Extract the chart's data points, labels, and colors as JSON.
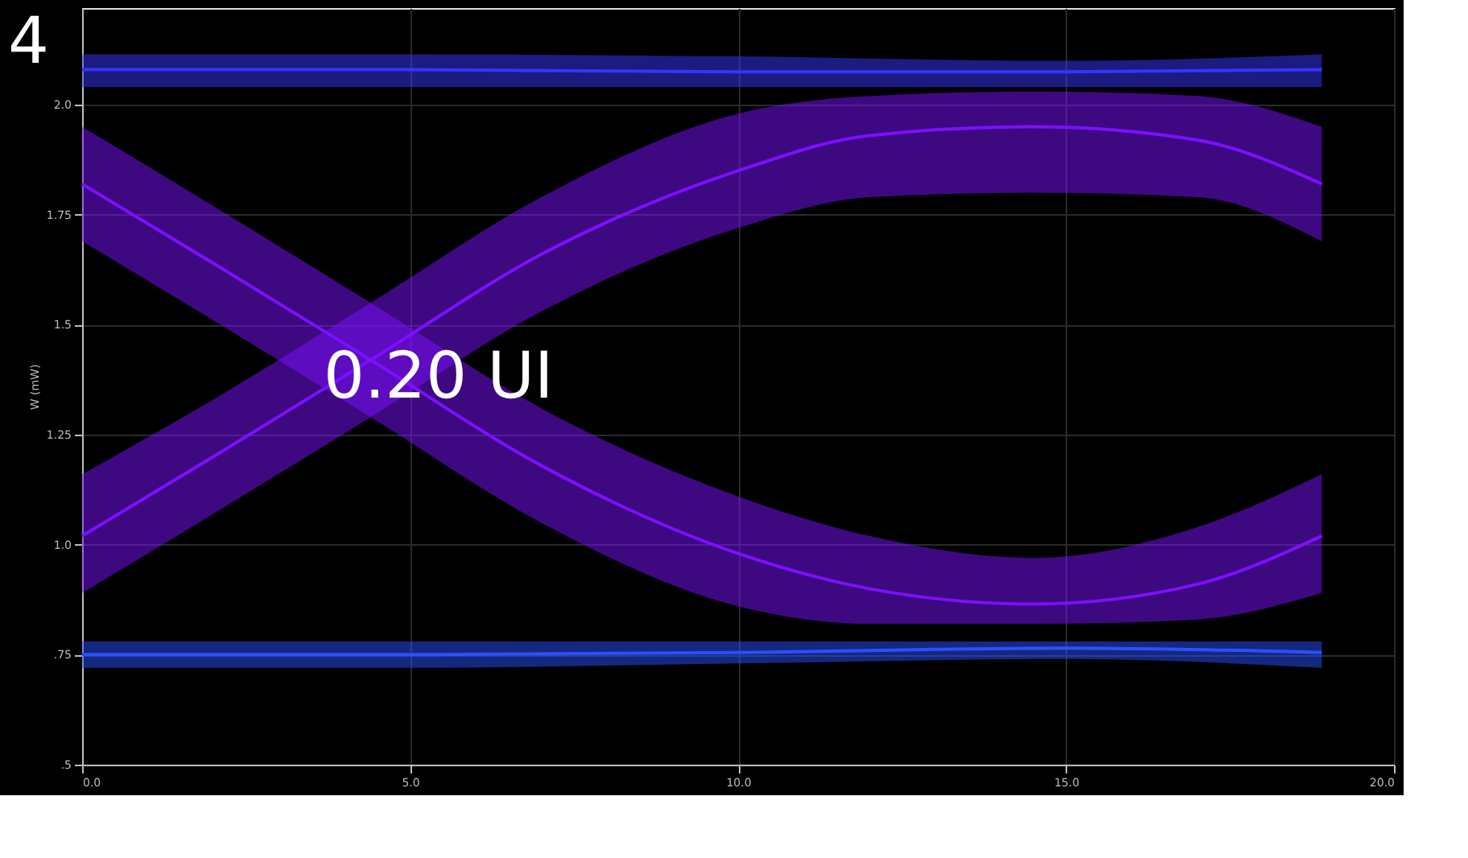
{
  "chart_data": {
    "type": "line",
    "ylabel": "W (mW)",
    "annotations": [
      "4",
      "0.20 UI"
    ],
    "xlim": [
      0,
      20
    ],
    "xticks": [
      {
        "value": 0,
        "label": "0.0"
      },
      {
        "value": 5,
        "label": "5.0"
      },
      {
        "value": 10,
        "label": "10.0"
      },
      {
        "value": 15,
        "label": "15.0"
      },
      {
        "value": 20,
        "label": "20.0"
      }
    ],
    "ylim": [
      0.5,
      2.22
    ],
    "yticks": [
      {
        "value": 0.5,
        "label": ".5"
      },
      {
        "value": 0.75,
        "label": ".75"
      },
      {
        "value": 1.0,
        "label": "1.0"
      },
      {
        "value": 1.25,
        "label": "1.25"
      },
      {
        "value": 1.5,
        "label": "1.5"
      },
      {
        "value": 1.75,
        "label": "1.75"
      },
      {
        "value": 2.0,
        "label": "2.0"
      }
    ],
    "grid": true,
    "series": [
      {
        "color": "#7b10ff",
        "x": [
          0,
          2,
          4.4,
          7,
          10,
          12,
          14.5,
          17,
          18.9
        ],
        "values": [
          1.82,
          1.64,
          1.42,
          1.18,
          0.98,
          0.9,
          0.865,
          0.91,
          1.02
        ],
        "lower": [
          1.69,
          1.51,
          1.29,
          1.05,
          0.86,
          0.82,
          0.82,
          0.83,
          0.89
        ],
        "upper": [
          1.95,
          1.77,
          1.55,
          1.31,
          1.11,
          1.02,
          0.97,
          1.04,
          1.16
        ]
      },
      {
        "color": "#7b10ff",
        "x": [
          0,
          2,
          4.4,
          7,
          10,
          12,
          14.5,
          17,
          18.9
        ],
        "values": [
          1.02,
          1.2,
          1.42,
          1.66,
          1.85,
          1.93,
          1.95,
          1.92,
          1.82
        ],
        "lower": [
          0.89,
          1.07,
          1.29,
          1.53,
          1.72,
          1.79,
          1.8,
          1.79,
          1.69
        ],
        "upper": [
          1.16,
          1.33,
          1.55,
          1.79,
          1.98,
          2.02,
          2.03,
          2.02,
          1.95
        ]
      },
      {
        "color": "#3535ff",
        "x": [
          0,
          5,
          10,
          15,
          18.9
        ],
        "values": [
          2.08,
          2.08,
          2.075,
          2.075,
          2.08
        ],
        "lower": [
          2.04,
          2.04,
          2.04,
          2.04,
          2.04
        ],
        "upper": [
          2.115,
          2.115,
          2.11,
          2.1,
          2.115
        ]
      },
      {
        "color": "#2a50ff",
        "x": [
          0,
          5,
          10,
          15,
          18.9
        ],
        "values": [
          0.75,
          0.75,
          0.755,
          0.765,
          0.755
        ],
        "lower": [
          0.72,
          0.72,
          0.73,
          0.74,
          0.72
        ],
        "upper": [
          0.78,
          0.78,
          0.78,
          0.78,
          0.78
        ]
      }
    ]
  }
}
